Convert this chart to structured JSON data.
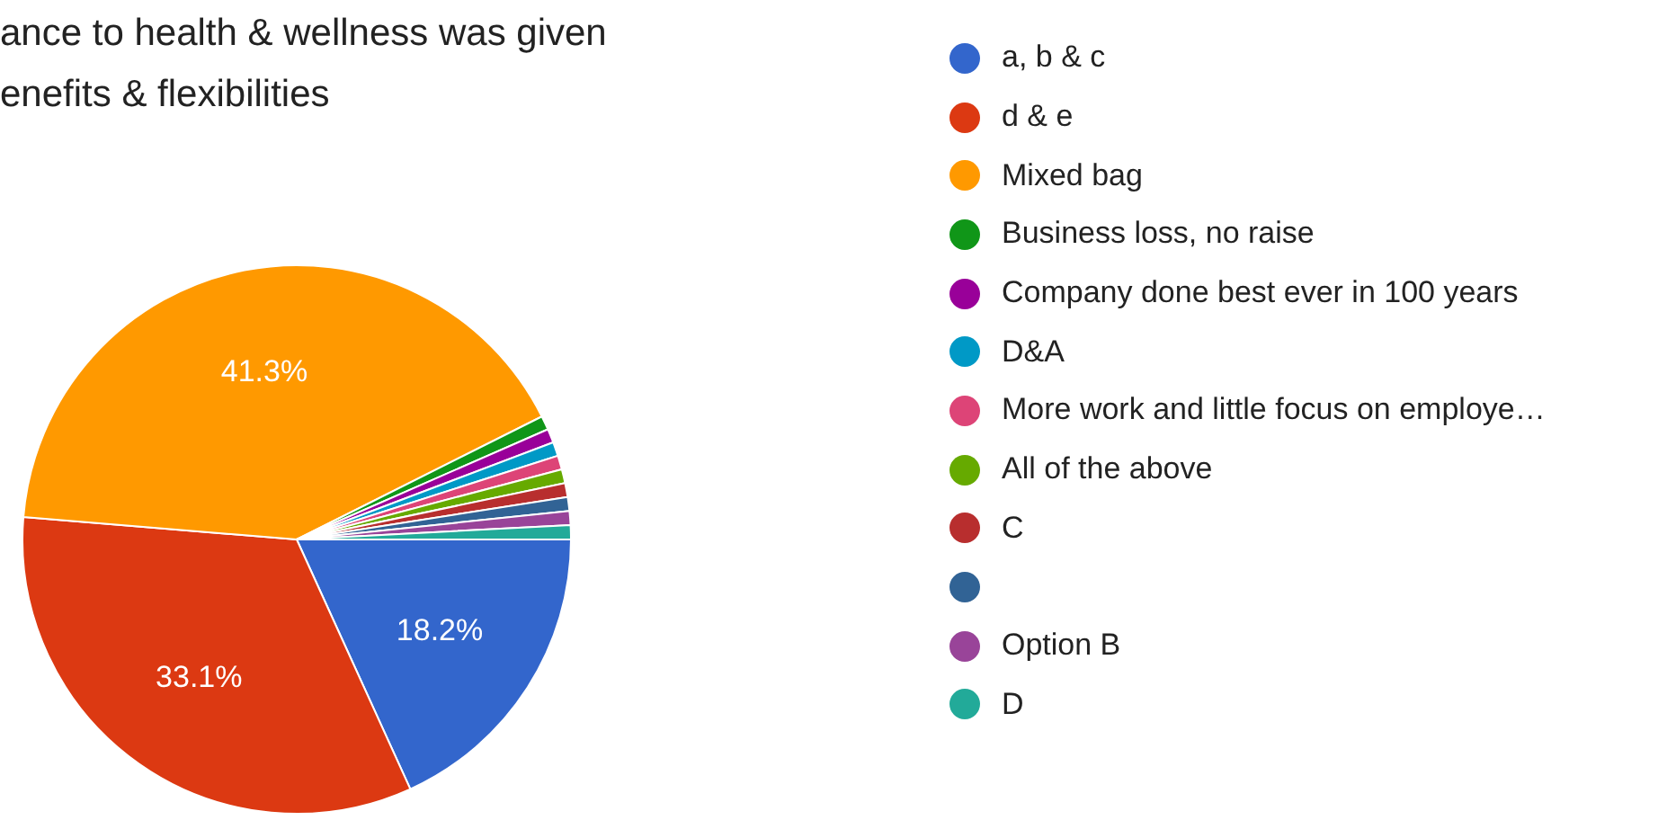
{
  "chart_data": {
    "type": "pie",
    "title": "ance to health & wellness was given enefits & flexibilities",
    "categories": [
      "a, b & c",
      "d & e",
      "Mixed bag",
      "Business loss, no raise",
      "Company done best ever in 100 years",
      "D&A",
      "More work and little focus on employe…",
      "All of the above",
      "C",
      null,
      "Option B",
      "D"
    ],
    "values": [
      18.2,
      33.1,
      41.3,
      0.82,
      0.82,
      0.82,
      0.82,
      0.82,
      0.82,
      0.82,
      0.82,
      0.84
    ],
    "colors": [
      "#3366cc",
      "#dc3912",
      "#ff9900",
      "#109618",
      "#990099",
      "#0099c6",
      "#dd4477",
      "#66aa00",
      "#b82e2e",
      "#316395",
      "#994499",
      "#22aa99"
    ],
    "value_labels": [
      "18.2%",
      "33.1%",
      "41.3%",
      null,
      null,
      null,
      null,
      null,
      null,
      null,
      null,
      null
    ],
    "legend": "right"
  }
}
